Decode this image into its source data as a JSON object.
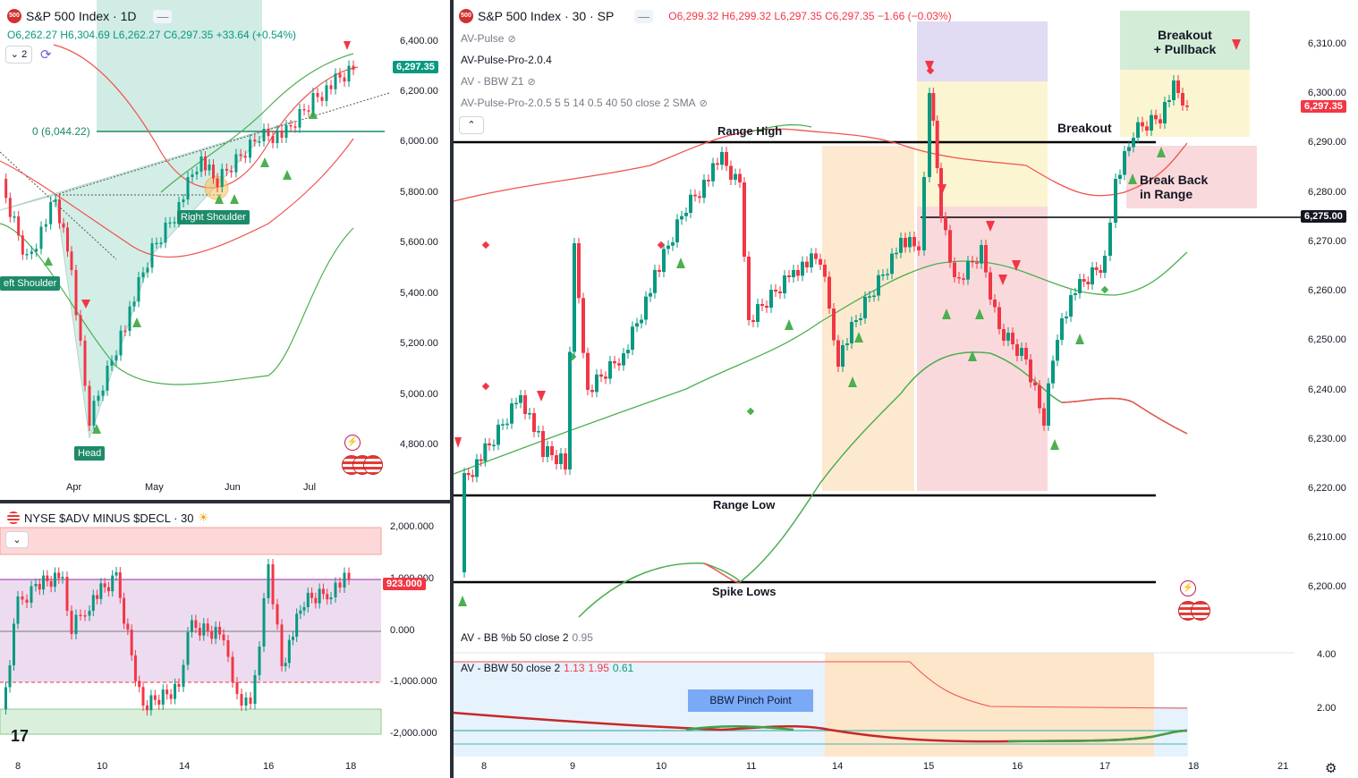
{
  "left_top": {
    "symbol_logo": "500",
    "title": "S&P 500 Index · 1D",
    "ohlc": {
      "o": "O6,262.27",
      "h": "H6,304.69",
      "l": "L6,262.27",
      "c": "C6,297.35",
      "chg": "+33.64 (+0.54%)"
    },
    "layers_count": "2",
    "fib_label": "0 (6,044.22)",
    "price_tag": "6,297.35",
    "price_axis": [
      "6,400.00",
      "6,200.00",
      "6,000.00",
      "5,800.00",
      "5,600.00",
      "5,400.00",
      "5,200.00",
      "5,000.00",
      "4,800.00"
    ],
    "time_axis": [
      "Apr",
      "May",
      "Jun",
      "Jul"
    ],
    "labels": {
      "left_shoulder": "eft Shoulder",
      "head": "Head",
      "right_shoulder": "Right Shoulder"
    }
  },
  "left_bottom": {
    "title": "NYSE $ADV MINUS $DECL · 30",
    "price_axis": [
      "2,000.000",
      "1,000.000",
      "0.000",
      "-1,000.000",
      "-2,000.000"
    ],
    "price_tag": "923.000",
    "time_axis": [
      "8",
      "10",
      "14",
      "16",
      "18"
    ],
    "brand": "17"
  },
  "right": {
    "symbol_logo": "500",
    "title": "S&P 500 Index · 30 · SP",
    "ohlc": {
      "o": "O6,299.32",
      "h": "H6,299.32",
      "l": "L6,297.35",
      "c": "C6,297.35",
      "chg": "−1.66 (−0.03%)"
    },
    "indicators": [
      "AV-Pulse",
      "AV-Pulse-Pro-2.0.4",
      "AV - BBW Z1",
      "AV-Pulse-Pro-2.0.5 5 5 14 0.5 40 50 close 2 SMA"
    ],
    "price_axis": [
      "6,310.00",
      "6,300.00",
      "6,290.00",
      "6,280.00",
      "6,270.00",
      "6,260.00",
      "6,250.00",
      "6,240.00",
      "6,230.00",
      "6,220.00",
      "6,210.00",
      "6,200.00"
    ],
    "price_tag": "6,297.35",
    "level_tag": "6,275.00",
    "annotations": {
      "range_high": "Range High",
      "range_low": "Range Low",
      "spike_lows": "Spike Lows",
      "breakout": "Breakout",
      "breakout_pullback_1": "Breakout",
      "breakout_pullback_2": "+ Pullback",
      "break_back_1": "Break Back",
      "break_back_2": "in Range",
      "bbw_pinch": "BBW Pinch Point"
    },
    "sub_indicators": {
      "bb_pct": {
        "name": "AV - BB %b 50 close 2",
        "value": "0.95"
      },
      "bbw": {
        "name": "AV - BBW 50 close 2",
        "v1": "1.13",
        "v2": "1.95",
        "v3": "0.61"
      }
    },
    "sub_axis": [
      "4.00",
      "2.00"
    ],
    "time_axis": [
      "8",
      "9",
      "10",
      "11",
      "14",
      "15",
      "16",
      "17",
      "18",
      "21"
    ]
  },
  "colors": {
    "up": "#089981",
    "down": "#f23645",
    "green_band": "#4caf50",
    "red_band": "#f0524f"
  }
}
